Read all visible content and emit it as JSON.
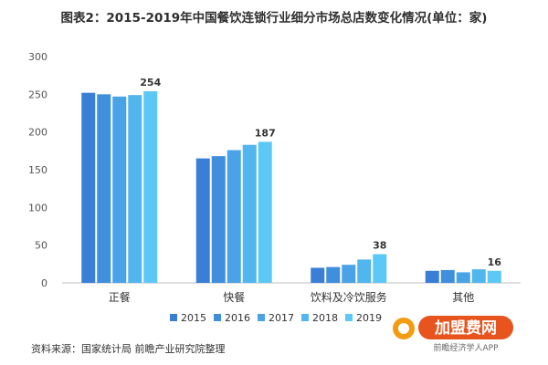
{
  "chart_data": {
    "type": "bar",
    "title": "图表2：2015-2019年中国餐饮连锁行业细分市场总店数变化情况(单位：家)",
    "categories": [
      "正餐",
      "快餐",
      "饮料及冷饮服务",
      "其他"
    ],
    "series": [
      {
        "name": "2015",
        "color": "#3a7fd5",
        "values": [
          252,
          165,
          20,
          16
        ]
      },
      {
        "name": "2016",
        "color": "#3f8fdc",
        "values": [
          250,
          168,
          21,
          17
        ]
      },
      {
        "name": "2017",
        "color": "#4aa3e6",
        "values": [
          247,
          176,
          24,
          14
        ]
      },
      {
        "name": "2018",
        "color": "#52b6ee",
        "values": [
          249,
          183,
          31,
          18
        ]
      },
      {
        "name": "2019",
        "color": "#5cc8f5",
        "values": [
          254,
          187,
          38,
          16
        ]
      }
    ],
    "data_labels": {
      "正餐": "254",
      "快餐": "187",
      "饮料及冷饮服务": "38",
      "其他": "16"
    },
    "ylim": [
      0,
      300
    ],
    "yticks": [
      0,
      50,
      100,
      150,
      200,
      250,
      300
    ],
    "grid": false,
    "legend_position": "bottom"
  },
  "source_text": "资料来源：国家统计局 前瞻产业研究院整理",
  "logo": {
    "main": "加盟费网",
    "sub": "前瞻经济学人APP",
    "accent": "#e8541e"
  }
}
